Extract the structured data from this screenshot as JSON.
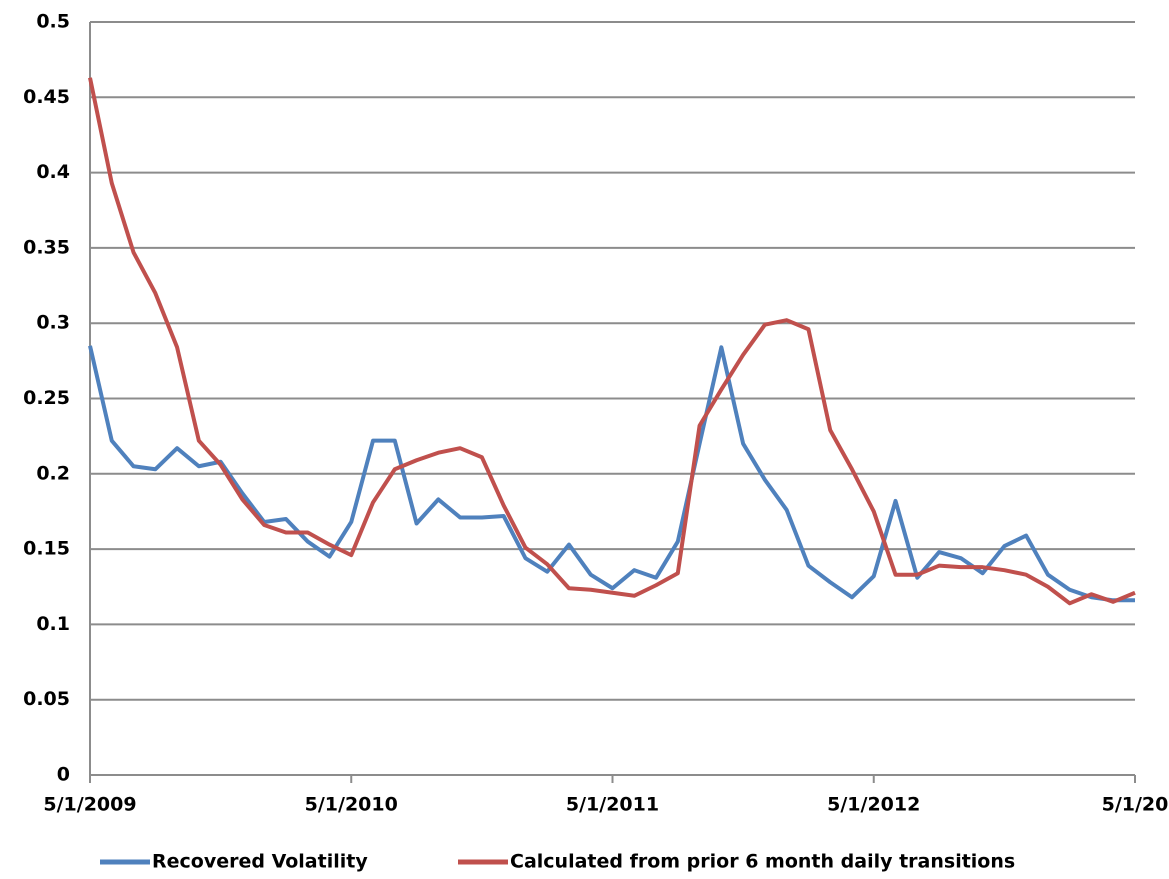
{
  "chart_data": {
    "type": "line",
    "categories": [
      "5/1/2009",
      null,
      null,
      null,
      null,
      null,
      null,
      null,
      null,
      null,
      null,
      null,
      "5/1/2010",
      null,
      null,
      null,
      null,
      null,
      null,
      null,
      null,
      null,
      null,
      null,
      "5/1/2011",
      null,
      null,
      null,
      null,
      null,
      null,
      null,
      null,
      null,
      null,
      null,
      "5/1/2012",
      null,
      null,
      null,
      null,
      null,
      null,
      null,
      null,
      null,
      null,
      null,
      "5/1/20"
    ],
    "series": [
      {
        "name": "Recovered Volatility",
        "color": "#4f81bd",
        "values": [
          0.285,
          0.222,
          0.205,
          0.203,
          0.217,
          0.205,
          0.208,
          0.187,
          0.168,
          0.17,
          0.155,
          0.145,
          0.168,
          0.222,
          0.222,
          0.167,
          0.183,
          0.171,
          0.171,
          0.172,
          0.144,
          0.135,
          0.153,
          0.133,
          0.124,
          0.136,
          0.131,
          0.155,
          0.22,
          0.284,
          0.22,
          0.196,
          0.176,
          0.139,
          0.128,
          0.118,
          0.132,
          0.182,
          0.131,
          0.148,
          0.144,
          0.134,
          0.152,
          0.159,
          0.133,
          0.123,
          0.118,
          0.116,
          0.116
        ]
      },
      {
        "name": "Calculated from prior 6 month daily transitions",
        "color": "#c0504d",
        "values": [
          0.463,
          0.393,
          0.347,
          0.32,
          0.284,
          0.222,
          0.206,
          0.183,
          0.166,
          0.161,
          0.161,
          0.153,
          0.146,
          0.181,
          0.203,
          0.209,
          0.214,
          0.217,
          0.211,
          0.179,
          0.151,
          0.14,
          0.124,
          0.123,
          0.121,
          0.119,
          0.126,
          0.134,
          0.232,
          0.256,
          0.279,
          0.299,
          0.302,
          0.296,
          0.229,
          0.203,
          0.175,
          0.133,
          0.133,
          0.139,
          0.138,
          0.138,
          0.136,
          0.133,
          0.125,
          0.114,
          0.12,
          0.115,
          0.121
        ]
      }
    ],
    "ylim": [
      0,
      0.5
    ],
    "yticks": [
      0,
      0.05,
      0.1,
      0.15,
      0.2,
      0.25,
      0.3,
      0.35,
      0.4,
      0.45,
      0.5
    ],
    "grid": true,
    "legend": "bottom"
  }
}
